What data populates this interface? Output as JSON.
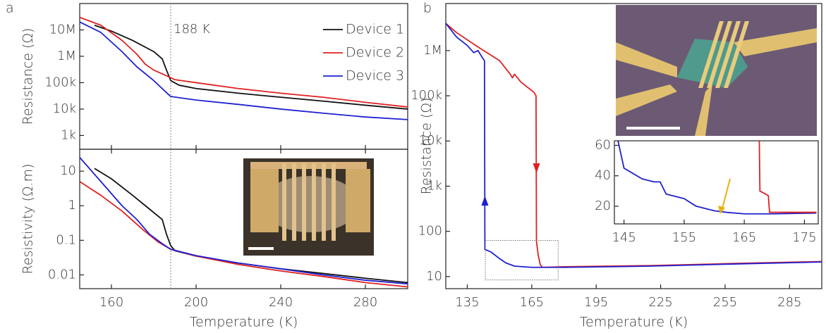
{
  "chart_data": [
    {
      "type": "line",
      "panel_label": "a",
      "ylabel": "Resistance (Ω)",
      "ylog": true,
      "xlim": [
        145,
        300
      ],
      "ylim": [
        300,
        100000000
      ],
      "yticks": [
        {
          "value": 1000,
          "label": "1k"
        },
        {
          "value": 10000,
          "label": "10k"
        },
        {
          "value": 100000,
          "label": "100k"
        },
        {
          "value": 1000000,
          "label": "1M"
        },
        {
          "value": 10000000,
          "label": "10M"
        }
      ],
      "vline": {
        "value": 188,
        "label": "188 K"
      },
      "legend": "upper right",
      "series": [
        {
          "name": "Device 1",
          "color": "#111111",
          "x": [
            152,
            160,
            170,
            180,
            184,
            186,
            188,
            192,
            200,
            220,
            240,
            260,
            280,
            300
          ],
          "values": [
            15000000,
            9000000,
            4000000,
            1500000,
            800000,
            300000,
            120000,
            80000,
            60000,
            40000,
            28000,
            20000,
            14000,
            10000
          ]
        },
        {
          "name": "Device 2",
          "color": "#e02020",
          "x": [
            145,
            155,
            165,
            172,
            176,
            180,
            185,
            190,
            200,
            220,
            240,
            260,
            280,
            300
          ],
          "values": [
            30000000,
            15000000,
            4000000,
            1200000,
            500000,
            300000,
            200000,
            130000,
            100000,
            60000,
            40000,
            28000,
            18000,
            12000
          ]
        },
        {
          "name": "Device 3",
          "color": "#2020d0",
          "x": [
            145,
            155,
            165,
            172,
            180,
            185,
            188,
            200,
            220,
            240,
            260,
            280,
            300
          ],
          "values": [
            20000000,
            8000000,
            1500000,
            400000,
            120000,
            50000,
            30000,
            22000,
            15000,
            10000,
            7000,
            5000,
            4000
          ]
        }
      ]
    },
    {
      "type": "line",
      "ylabel": "Resistivity (Ω.m)",
      "xlabel": "Temperature (K)",
      "ylog": true,
      "xlim": [
        145,
        300
      ],
      "ylim": [
        0.004,
        43
      ],
      "xticks": [
        160,
        200,
        240,
        280
      ],
      "yticks": [
        0.01,
        0.1,
        1,
        10
      ],
      "vline": {
        "value": 188
      },
      "series": [
        {
          "color": "#111111",
          "x": [
            152,
            160,
            170,
            178,
            184,
            186,
            188,
            190,
            200,
            220,
            240,
            260,
            280,
            300
          ],
          "values": [
            12,
            6,
            2,
            0.8,
            0.4,
            0.15,
            0.07,
            0.05,
            0.035,
            0.022,
            0.015,
            0.011,
            0.008,
            0.006
          ]
        },
        {
          "color": "#e02020",
          "x": [
            145,
            155,
            165,
            175,
            182,
            188,
            200,
            220,
            240,
            260,
            280,
            300
          ],
          "values": [
            5,
            2,
            0.7,
            0.2,
            0.09,
            0.055,
            0.035,
            0.02,
            0.013,
            0.009,
            0.006,
            0.0045
          ]
        },
        {
          "color": "#2020d0",
          "x": [
            145,
            155,
            165,
            172,
            178,
            184,
            188,
            200,
            220,
            240,
            260,
            280,
            300
          ],
          "values": [
            25,
            5,
            1,
            0.4,
            0.15,
            0.08,
            0.055,
            0.036,
            0.022,
            0.015,
            0.01,
            0.007,
            0.0055
          ]
        }
      ]
    },
    {
      "type": "line",
      "panel_label": "b",
      "ylabel": "Resistance (Ω)",
      "xlabel": "Temperature (K)",
      "ylog": true,
      "xlim": [
        125,
        300
      ],
      "ylim": [
        5.4,
        11000000
      ],
      "xticks": [
        135,
        165,
        195,
        225,
        255,
        285
      ],
      "yticks": [
        10,
        100,
        {
          "value": 1000,
          "label": "1k"
        },
        {
          "value": 10000,
          "label": "10k"
        },
        {
          "value": 100000,
          "label": "100k"
        },
        {
          "value": 1000000,
          "label": "1M"
        }
      ],
      "series": [
        {
          "color": "#e02020",
          "x": [
            125,
            130,
            140,
            150,
            155,
            156,
            157,
            160,
            166,
            167,
            167.2,
            168,
            169,
            170,
            180,
            220,
            260,
            300
          ],
          "values": [
            4000000,
            2500000,
            1200000,
            600000,
            300000,
            250000,
            300000,
            200000,
            120000,
            100000,
            60,
            30,
            18,
            16,
            16.5,
            17.5,
            19.5,
            21.5
          ]
        },
        {
          "color": "#2020d0",
          "x": [
            125,
            130,
            135,
            138,
            140,
            142,
            143,
            143.2,
            146,
            150,
            153,
            157,
            165,
            180,
            220,
            260,
            300
          ],
          "values": [
            4000000,
            2000000,
            1300000,
            900000,
            1000000,
            700000,
            600000,
            40,
            35,
            25,
            20,
            17,
            16,
            16,
            17,
            19,
            21
          ]
        }
      ]
    },
    {
      "type": "line",
      "xlim": [
        143.4,
        177.3
      ],
      "ylim": [
        8.4,
        63
      ],
      "xticks": [
        145,
        155,
        165,
        175
      ],
      "yticks": [
        20,
        40,
        60
      ],
      "series": [
        {
          "color": "#2020d0",
          "x": [
            144,
            145,
            148,
            150,
            151,
            152,
            155,
            157,
            160,
            162,
            165,
            170,
            177
          ],
          "values": [
            63,
            45,
            38,
            36,
            36,
            28,
            25,
            20,
            17,
            16,
            15,
            15,
            15.5
          ]
        },
        {
          "color": "#e02020",
          "x": [
            167.5,
            167.6,
            169,
            169.2,
            177
          ],
          "values": [
            63,
            30,
            27,
            16,
            16
          ]
        }
      ]
    }
  ]
}
